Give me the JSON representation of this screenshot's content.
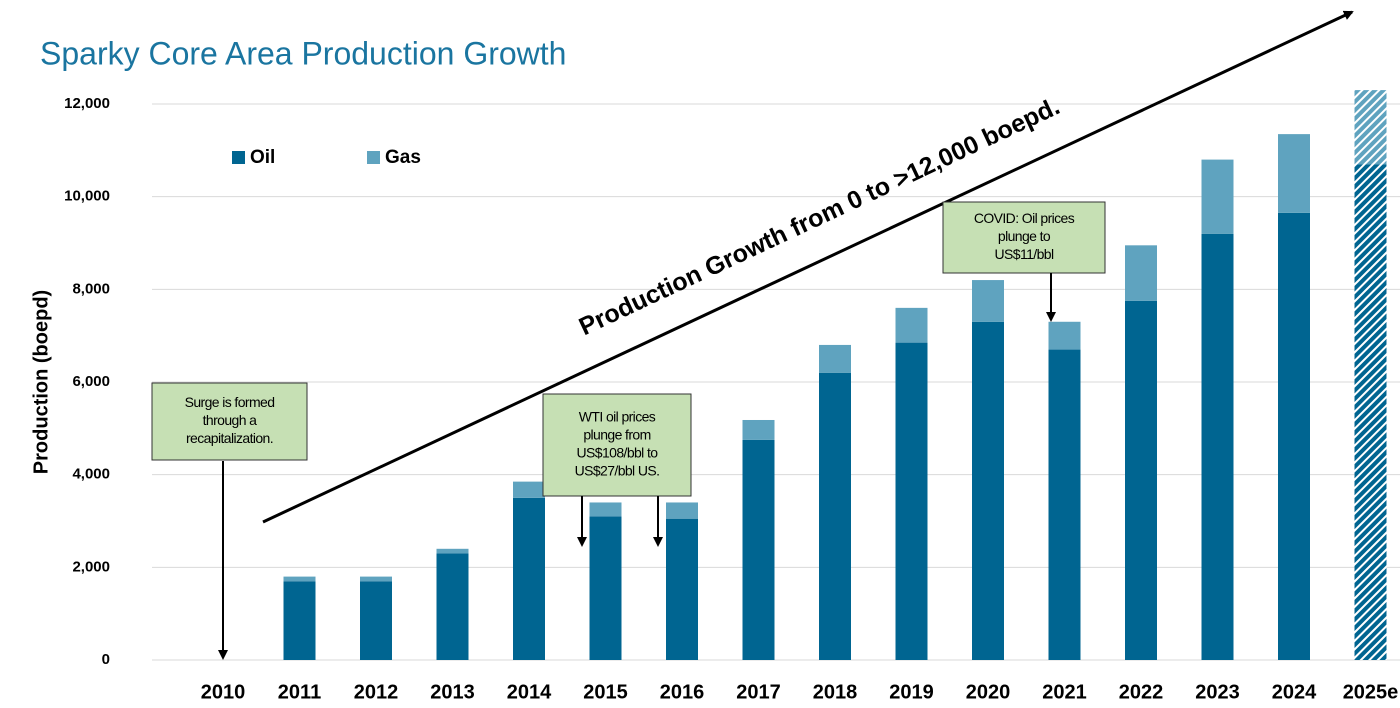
{
  "chart_data": {
    "type": "stacked_bar",
    "title": "Sparky Core Area Production Growth",
    "y_label": "Production (boepd)",
    "categories": [
      "2010",
      "2011",
      "2012",
      "2013",
      "2014",
      "2015",
      "2016",
      "2017",
      "2018",
      "2019",
      "2020",
      "2021",
      "2022",
      "2023",
      "2024",
      "2025e"
    ],
    "hatched": [
      false,
      false,
      false,
      false,
      false,
      false,
      false,
      false,
      false,
      false,
      false,
      false,
      false,
      false,
      false,
      true
    ],
    "series": [
      {
        "name": "Oil",
        "color": "#006591",
        "values": [
          0,
          1700,
          1700,
          2300,
          3500,
          3100,
          3050,
          4750,
          6200,
          6850,
          7300,
          6700,
          7750,
          9200,
          9650,
          10700
        ]
      },
      {
        "name": "Gas",
        "color": "#5fa3bf",
        "values": [
          0,
          100,
          100,
          100,
          350,
          300,
          350,
          430,
          600,
          750,
          900,
          600,
          1200,
          1600,
          1700,
          1600
        ]
      }
    ],
    "ylim": [
      0,
      12300
    ],
    "yticks": [
      0,
      {
        "value": 2000,
        "label": "2,000"
      },
      {
        "value": 4000,
        "label": "4,000"
      },
      {
        "value": 6000,
        "label": "6,000"
      },
      {
        "value": 8000,
        "label": "8,000"
      },
      {
        "value": 10000,
        "label": "10,000"
      },
      {
        "value": 12000,
        "label": "12,000"
      }
    ],
    "grid": true,
    "legend": "top-left",
    "trend_label": "Production Growth from 0 to >12,000 boepd.",
    "annotations": [
      {
        "lines": [
          "Surge is formed",
          "through a",
          "recapitalization."
        ]
      },
      {
        "lines": [
          "WTI oil prices",
          "plunge from",
          "US$108/bbl to",
          "US$27/bbl US."
        ]
      },
      {
        "lines": [
          "COVID: Oil prices",
          "plunge to",
          "US$11/bbl"
        ]
      }
    ]
  }
}
